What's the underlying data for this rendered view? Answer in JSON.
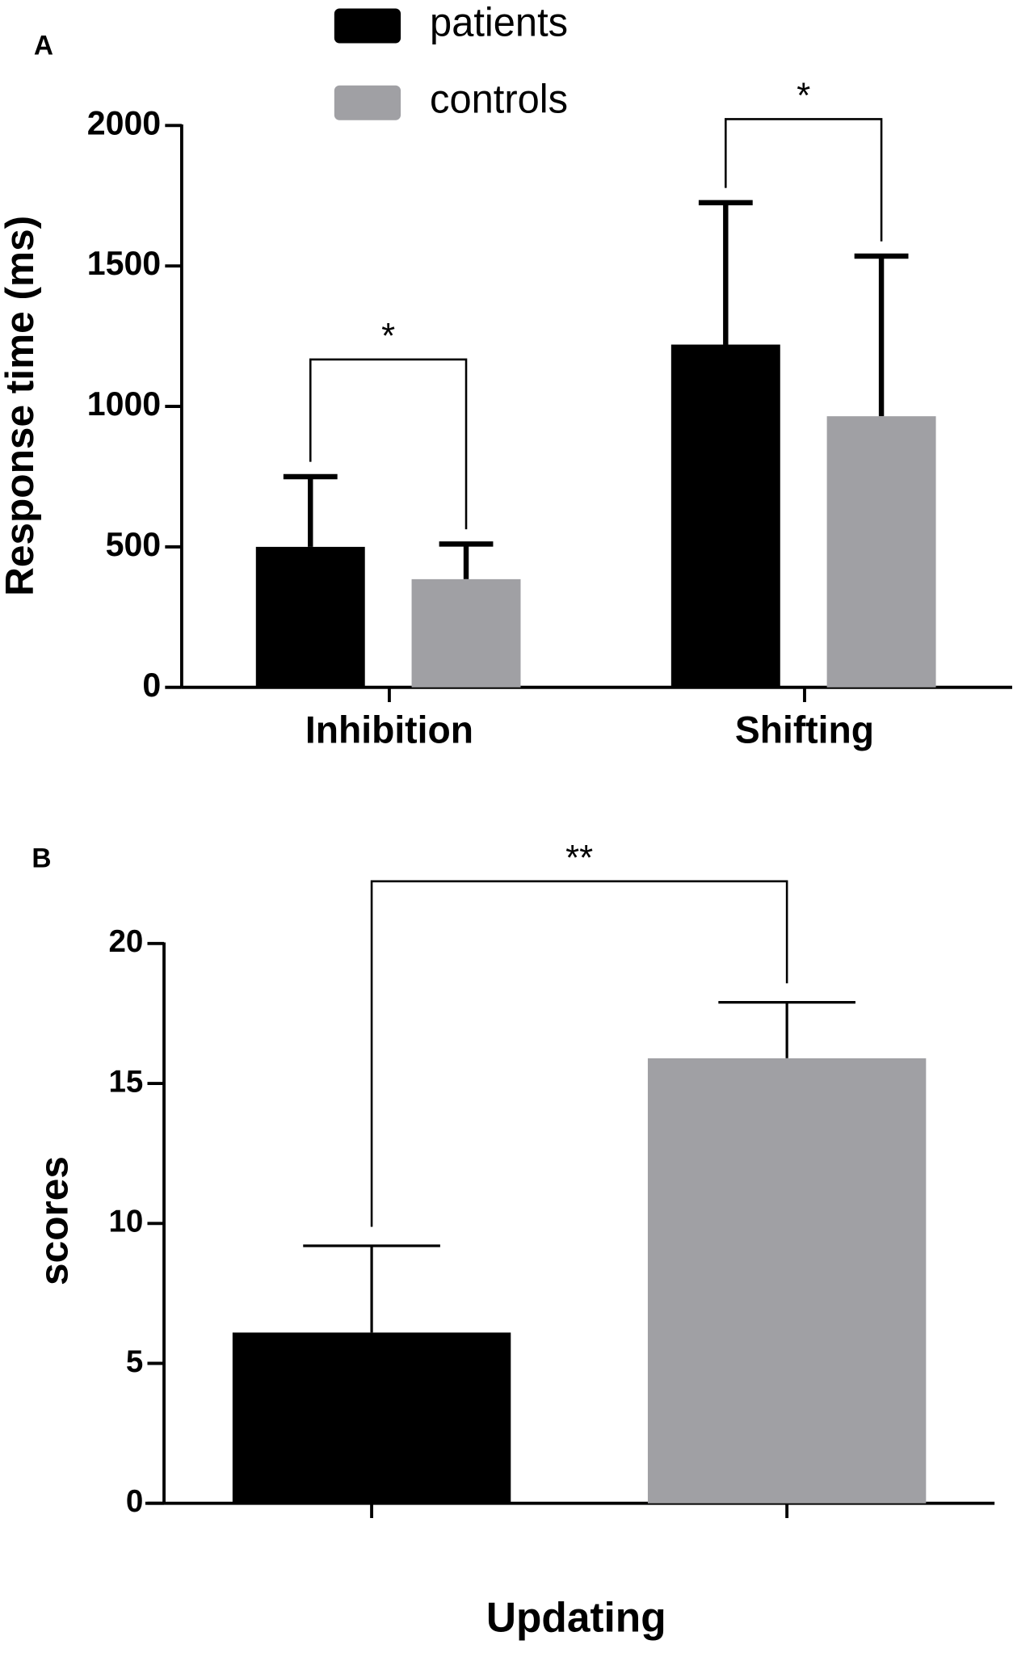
{
  "chart_data": [
    {
      "type": "bar",
      "panel": "A",
      "ylabel": "Response time (ms)",
      "categories": [
        "Inhibition",
        "Shifting"
      ],
      "series": [
        {
          "name": "patients",
          "color": "#000000",
          "values": [
            500,
            1220
          ],
          "errors": [
            250,
            505
          ]
        },
        {
          "name": "controls",
          "color": "#a0a0a4",
          "values": [
            385,
            965
          ],
          "errors": [
            125,
            570
          ]
        }
      ],
      "annotations": [
        "*",
        "*"
      ],
      "ylim": [
        0,
        2000
      ],
      "yticks": [
        0,
        500,
        1000,
        1500,
        2000
      ],
      "legend": "top"
    },
    {
      "type": "bar",
      "panel": "B",
      "ylabel": "scores",
      "xlabel": "Updating",
      "categories": [
        null,
        null
      ],
      "values": [
        6.1,
        15.9
      ],
      "errors": [
        3.1,
        2.0
      ],
      "colors": [
        "#000000",
        "#a0a0a4"
      ],
      "annotations": [
        "**"
      ],
      "ylim": [
        0,
        20
      ],
      "yticks": [
        0,
        5,
        10,
        15,
        20
      ]
    }
  ]
}
